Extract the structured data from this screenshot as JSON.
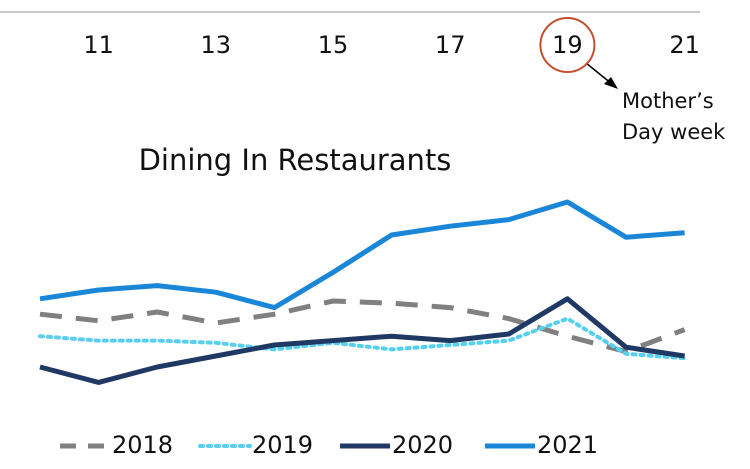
{
  "chart_data": {
    "type": "line",
    "title": "Dining In Restaurants",
    "categories": [
      null,
      "11",
      null,
      "13",
      null,
      "15",
      null,
      "17",
      null,
      "19",
      null,
      "21"
    ],
    "ylim": [
      0,
      100
    ],
    "series": [
      {
        "name": "2018",
        "color": "#808080",
        "style": "dashed",
        "values": [
          39,
          36,
          40,
          35,
          39,
          45,
          44,
          42,
          37,
          29,
          22,
          32
        ]
      },
      {
        "name": "2019",
        "color": "#55d0f3",
        "style": "dotted",
        "values": [
          29,
          27,
          27,
          26,
          23,
          26,
          23,
          25,
          27,
          37,
          21,
          19
        ]
      },
      {
        "name": "2020",
        "color": "#1f3864",
        "style": "solid",
        "values": [
          15,
          8,
          15,
          20,
          25,
          27,
          29,
          27,
          30,
          46,
          24,
          20
        ]
      },
      {
        "name": "2021",
        "color": "#1a86d8",
        "style": "solid",
        "values": [
          46,
          50,
          52,
          49,
          42,
          58,
          75,
          79,
          82,
          90,
          74,
          76
        ]
      }
    ],
    "annotation": [
      "Mother’s",
      "Day week"
    ],
    "highlight_category": 9
  }
}
